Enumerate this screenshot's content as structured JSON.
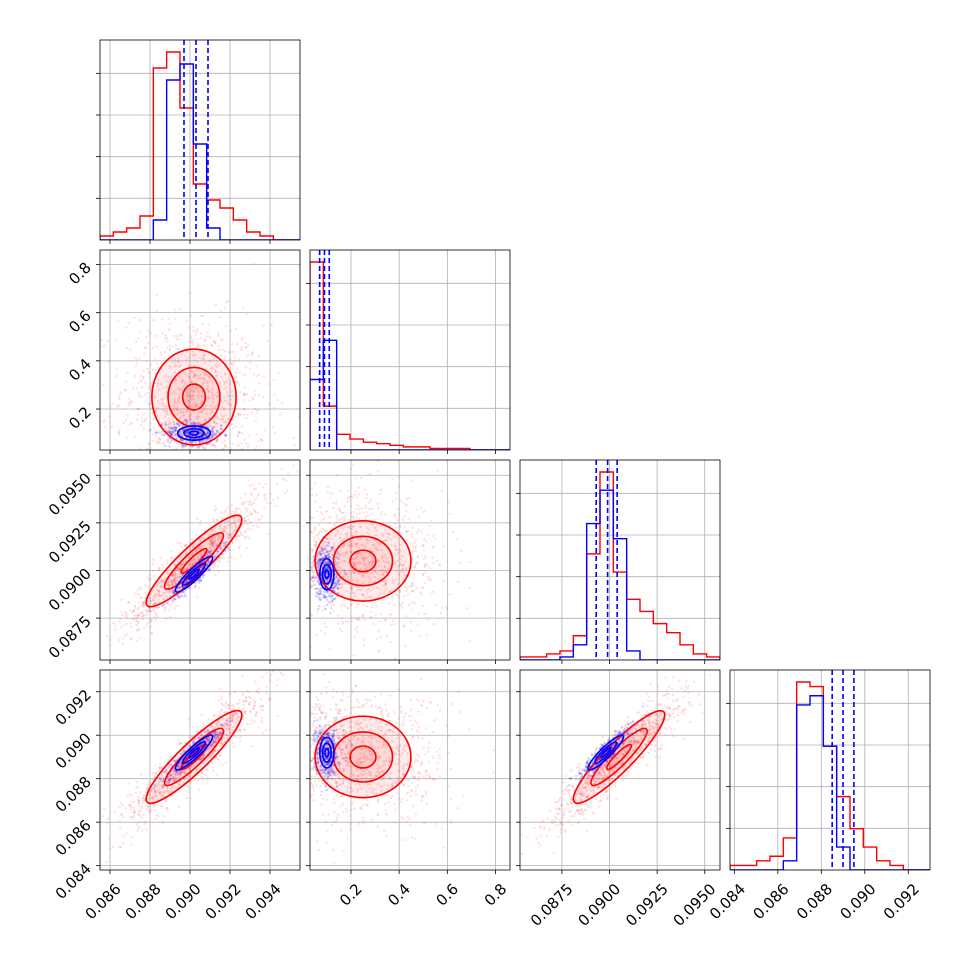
{
  "chart_data": {
    "type": "corner",
    "params": [
      {
        "range": [
          0.0855,
          0.0955
        ],
        "ticks": [
          0.086,
          0.088,
          0.09,
          0.092,
          0.094
        ],
        "tick_labels": [
          "0.086",
          "0.088",
          "0.090",
          "0.092",
          "0.094"
        ]
      },
      {
        "range": [
          0.03,
          0.86
        ],
        "ticks": [
          0.2,
          0.4,
          0.6,
          0.8
        ],
        "tick_labels": [
          "0.2",
          "0.4",
          "0.6",
          "0.8"
        ]
      },
      {
        "range": [
          0.0853,
          0.0958
        ],
        "ticks": [
          0.0875,
          0.09,
          0.0925,
          0.095
        ],
        "tick_labels": [
          "0.0875",
          "0.0900",
          "0.0925",
          "0.0950"
        ]
      },
      {
        "range": [
          0.0838,
          0.093
        ],
        "ticks": [
          0.084,
          0.086,
          0.088,
          0.09,
          0.092
        ],
        "tick_labels": [
          "0.084",
          "0.086",
          "0.088",
          "0.090",
          "0.092"
        ]
      }
    ],
    "series": [
      {
        "color": "#ff0000",
        "histograms": [
          {
            "edges_range": [
              0.0855,
              0.0955
            ],
            "counts": [
              1,
              2,
              3,
              6,
              43,
              47,
              33,
              14,
              10,
              8,
              5,
              2,
              1,
              0,
              0
            ]
          },
          {
            "edges_range": [
              0.03,
              0.86
            ],
            "counts": [
              120,
              28,
              10,
              7,
              5,
              4,
              3,
              2,
              2,
              1,
              1,
              1,
              0,
              0,
              0
            ]
          },
          {
            "edges_range": [
              0.0853,
              0.0958
            ],
            "counts": [
              1,
              1,
              2,
              3,
              8,
              35,
              62,
              29,
              20,
              16,
              12,
              9,
              5,
              2,
              1
            ]
          },
          {
            "edges_range": [
              0.0838,
              0.093
            ],
            "counts": [
              1,
              1,
              2,
              3,
              7,
              41,
              40,
              27,
              16,
              9,
              5,
              2,
              1,
              0,
              0
            ]
          }
        ],
        "medians": [
          0.0898,
          0.09,
          0.09,
          0.0887
        ],
        "scatter_centers": [
          0.0902,
          0.25,
          0.0905,
          0.089
        ],
        "scatter_spread": [
          0.0018,
          0.17,
          0.0018,
          0.0016
        ]
      },
      {
        "color": "#0000ff",
        "histograms": [
          {
            "edges_range": [
              0.0855,
              0.0955
            ],
            "counts": [
              0,
              0,
              0,
              0,
              5,
              40,
              44,
              24,
              3,
              0,
              0,
              0,
              0,
              0,
              0
            ]
          },
          {
            "edges_range": [
              0.03,
              0.86
            ],
            "counts": [
              45,
              70,
              0,
              0,
              0,
              0,
              0,
              0,
              0,
              0,
              0,
              0,
              0,
              0,
              0
            ]
          },
          {
            "edges_range": [
              0.0853,
              0.0958
            ],
            "counts": [
              0,
              0,
              0,
              1,
              5,
              45,
              56,
              40,
              3,
              0,
              0,
              0,
              0,
              0,
              0
            ]
          },
          {
            "edges_range": [
              0.0838,
              0.093
            ],
            "counts": [
              0,
              0,
              0,
              0,
              2,
              36,
              38,
              27,
              5,
              0,
              0,
              0,
              0,
              0,
              0
            ]
          }
        ],
        "quantiles": [
          [
            0.0897,
            0.0903,
            0.0909
          ],
          [
            0.07,
            0.09,
            0.11
          ],
          [
            0.0893,
            0.0899,
            0.0904
          ],
          [
            0.0885,
            0.089,
            0.0895
          ]
        ],
        "scatter_centers": [
          0.0902,
          0.1,
          0.0898,
          0.0892
        ],
        "scatter_spread": [
          0.0007,
          0.025,
          0.0007,
          0.0006
        ]
      }
    ],
    "grid": true
  }
}
